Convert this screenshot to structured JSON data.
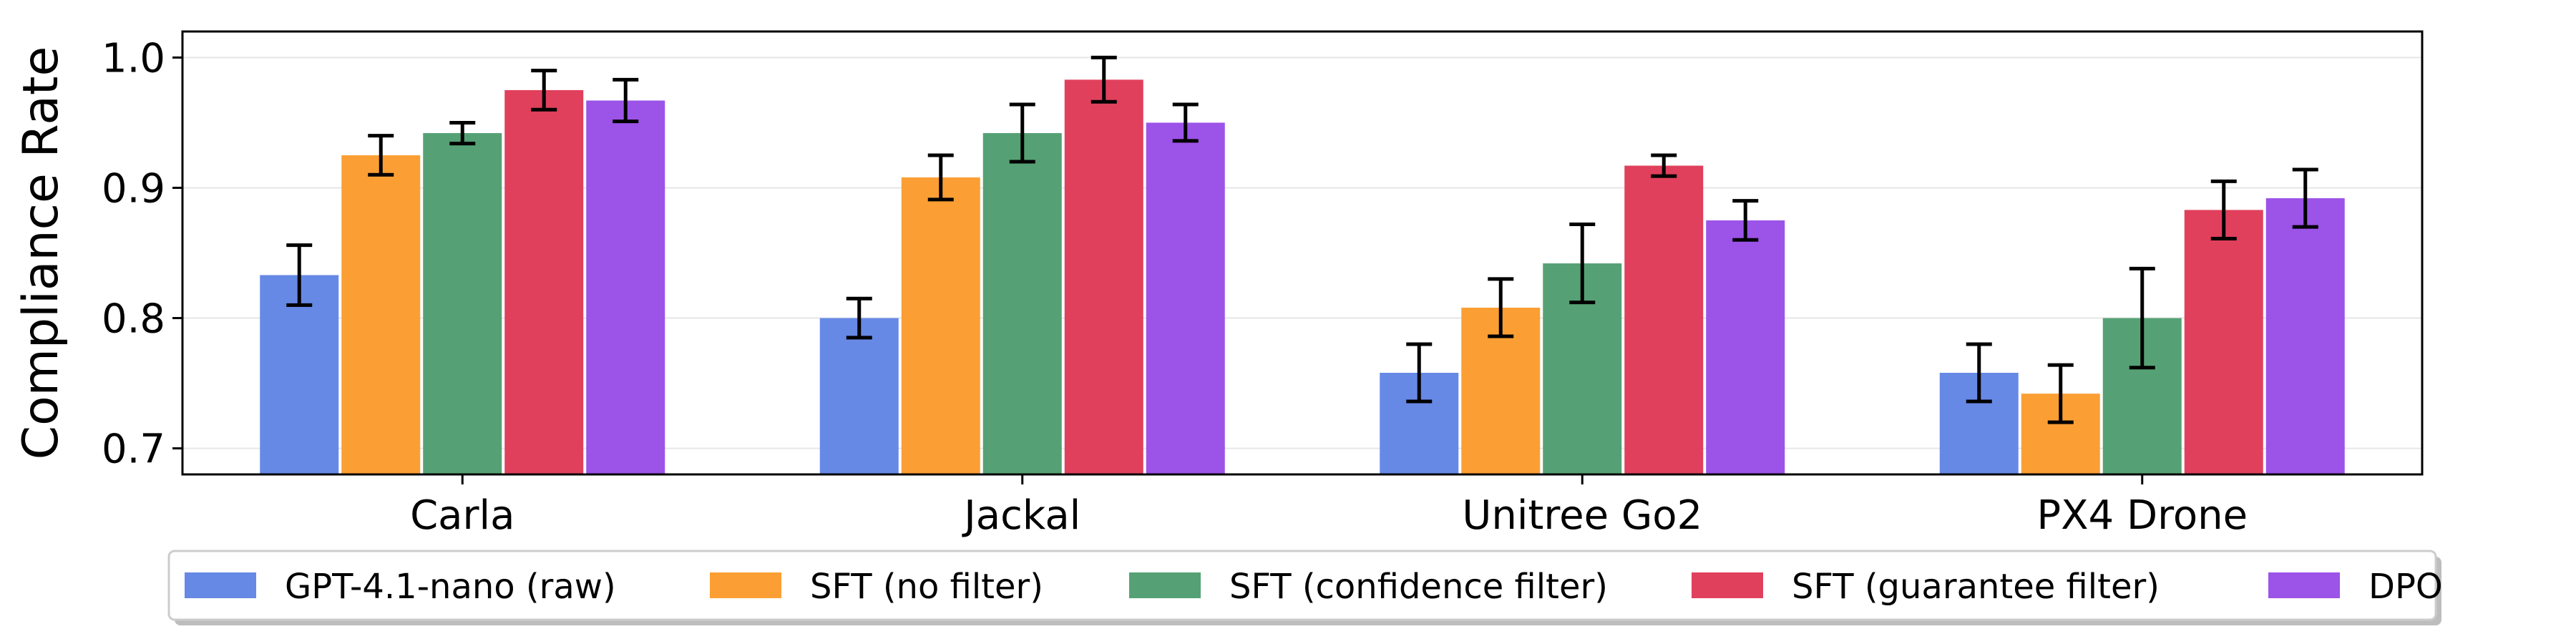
{
  "chart_data": {
    "type": "bar",
    "title": "",
    "xlabel": "",
    "ylabel": "Compliance Rate",
    "ylim": [
      0.68,
      1.02
    ],
    "yticks": [
      "0.7",
      "0.8",
      "0.9",
      "1.0"
    ],
    "grid": "horizontal",
    "legend_position": "bottom-center",
    "categories": [
      "Carla",
      "Jackal",
      "Unitree Go2",
      "PX4 Drone"
    ],
    "series": [
      {
        "name": "GPT-4.1-nano (raw)",
        "color": "#6789e6",
        "values": [
          0.833,
          0.8,
          0.758,
          0.758
        ],
        "errors": [
          0.023,
          0.015,
          0.022,
          0.022
        ]
      },
      {
        "name": "SFT (no filter)",
        "color": "#fb9f34",
        "values": [
          0.925,
          0.908,
          0.808,
          0.742
        ],
        "errors": [
          0.015,
          0.017,
          0.022,
          0.022
        ]
      },
      {
        "name": "SFT (confidence filter)",
        "color": "#55a175",
        "values": [
          0.942,
          0.942,
          0.842,
          0.8
        ],
        "errors": [
          0.008,
          0.022,
          0.03,
          0.038
        ]
      },
      {
        "name": "SFT (guarantee filter)",
        "color": "#e0405c",
        "values": [
          0.975,
          0.983,
          0.917,
          0.883
        ],
        "errors": [
          0.015,
          0.017,
          0.008,
          0.022
        ]
      },
      {
        "name": "DPO",
        "color": "#9c53e8",
        "values": [
          0.967,
          0.95,
          0.875,
          0.892
        ],
        "errors": [
          0.016,
          0.014,
          0.015,
          0.022
        ]
      }
    ]
  }
}
